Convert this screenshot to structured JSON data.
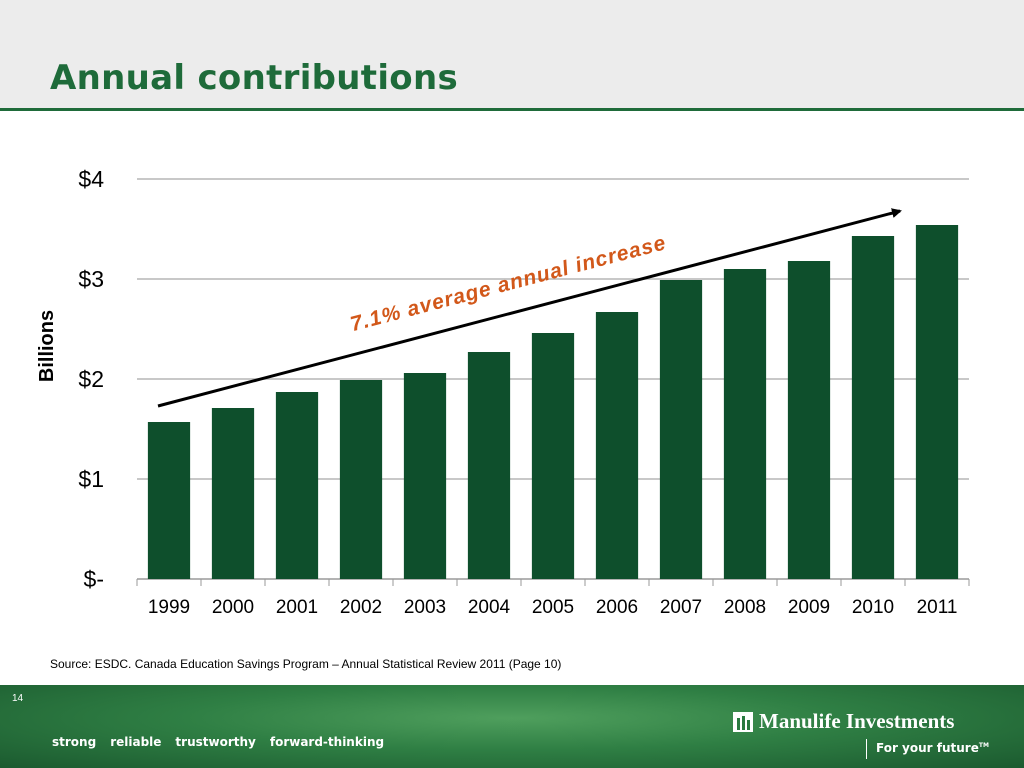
{
  "slide": {
    "title": "Annual contributions",
    "source": "Source: ESDC. Canada Education Savings Program – Annual Statistical Review 2011 (Page 10)",
    "page_number": "14"
  },
  "footer": {
    "tagline": [
      "strong",
      "reliable",
      "trustworthy",
      "forward-thinking"
    ],
    "brand_name": "Manulife Investments",
    "brand_slogan": "For your future",
    "brand_slogan_mark": "TM"
  },
  "colors": {
    "accent": "#1e6b3a",
    "bar": "#0e4f2c",
    "annotation": "#d2581a"
  },
  "chart_data": {
    "type": "bar",
    "categories": [
      "1999",
      "2000",
      "2001",
      "2002",
      "2003",
      "2004",
      "2005",
      "2006",
      "2007",
      "2008",
      "2009",
      "2010",
      "2011"
    ],
    "values": [
      1.57,
      1.71,
      1.87,
      1.99,
      2.06,
      2.27,
      2.46,
      2.67,
      2.99,
      3.1,
      3.18,
      3.43,
      3.54
    ],
    "ylabel": "Billions",
    "ylim": [
      0,
      4
    ],
    "yticks": [
      0,
      1,
      2,
      3,
      4
    ],
    "ytick_labels": [
      "$-",
      "$1",
      "$2",
      "$3",
      "$4"
    ],
    "grid": true,
    "annotation": "7.1% average annual increase"
  }
}
